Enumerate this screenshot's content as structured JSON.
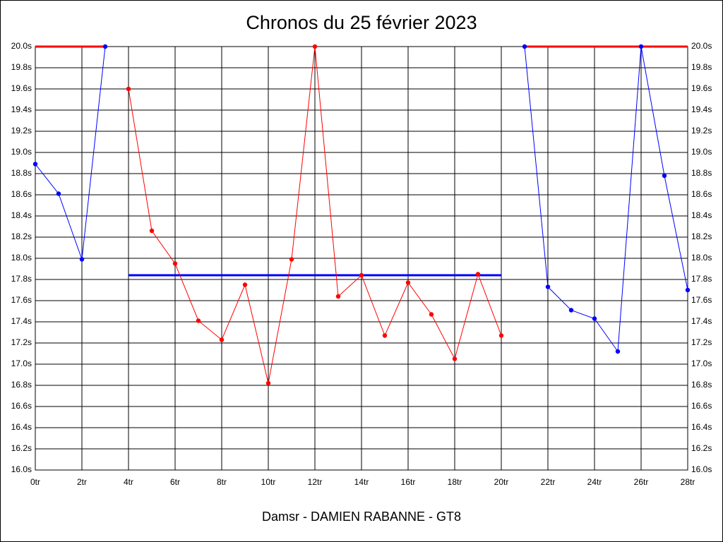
{
  "chart_data": {
    "type": "line",
    "title": "Chronos du 25 février 2023",
    "xlabel": "Damsr - DAMIEN RABANNE - GT8",
    "xlim": [
      0,
      28
    ],
    "xticks": [
      {
        "value": 0,
        "label": "0tr"
      },
      {
        "value": 2,
        "label": "2tr"
      },
      {
        "value": 4,
        "label": "4tr"
      },
      {
        "value": 6,
        "label": "6tr"
      },
      {
        "value": 8,
        "label": "8tr"
      },
      {
        "value": 10,
        "label": "10tr"
      },
      {
        "value": 12,
        "label": "12tr"
      },
      {
        "value": 14,
        "label": "14tr"
      },
      {
        "value": 16,
        "label": "16tr"
      },
      {
        "value": 18,
        "label": "18tr"
      },
      {
        "value": 20,
        "label": "20tr"
      },
      {
        "value": 22,
        "label": "22tr"
      },
      {
        "value": 24,
        "label": "24tr"
      },
      {
        "value": 26,
        "label": "26tr"
      },
      {
        "value": 28,
        "label": "28tr"
      }
    ],
    "ylim": [
      16,
      20
    ],
    "yticks": [
      {
        "value": 16,
        "label": "16.0s"
      },
      {
        "value": 16.2,
        "label": "16.2s"
      },
      {
        "value": 16.4,
        "label": "16.4s"
      },
      {
        "value": 16.6,
        "label": "16.6s"
      },
      {
        "value": 16.8,
        "label": "16.8s"
      },
      {
        "value": 17,
        "label": "17.0s"
      },
      {
        "value": 17.2,
        "label": "17.2s"
      },
      {
        "value": 17.4,
        "label": "17.4s"
      },
      {
        "value": 17.6,
        "label": "17.6s"
      },
      {
        "value": 17.8,
        "label": "17.8s"
      },
      {
        "value": 18,
        "label": "18.0s"
      },
      {
        "value": 18.2,
        "label": "18.2s"
      },
      {
        "value": 18.4,
        "label": "18.4s"
      },
      {
        "value": 18.6,
        "label": "18.6s"
      },
      {
        "value": 18.8,
        "label": "18.8s"
      },
      {
        "value": 19,
        "label": "19.0s"
      },
      {
        "value": 19.2,
        "label": "19.2s"
      },
      {
        "value": 19.4,
        "label": "19.4s"
      },
      {
        "value": 19.6,
        "label": "19.6s"
      },
      {
        "value": 19.8,
        "label": "19.8s"
      },
      {
        "value": 20,
        "label": "20.0s"
      }
    ],
    "grid": true,
    "series": [
      {
        "color": "#ff0000",
        "width": 3,
        "markers": false,
        "x": [
          0,
          3
        ],
        "values": [
          20,
          20
        ]
      },
      {
        "color": "#ff0000",
        "width": 3,
        "markers": false,
        "x": [
          21,
          28
        ],
        "values": [
          20,
          20
        ]
      },
      {
        "color": "#0000ff",
        "width": 3,
        "markers": false,
        "x": [
          4,
          20
        ],
        "values": [
          17.84,
          17.84
        ]
      },
      {
        "color": "#0000ff",
        "width": 1,
        "markers": true,
        "x": [
          0,
          1,
          2,
          3
        ],
        "values": [
          18.89,
          18.61,
          17.99,
          20.0
        ]
      },
      {
        "color": "#ff0000",
        "width": 1,
        "markers": true,
        "x": [
          4,
          5,
          6,
          7,
          8,
          9,
          10,
          11,
          12,
          13,
          14,
          15,
          16,
          17,
          18,
          19,
          20
        ],
        "values": [
          19.6,
          18.26,
          17.95,
          17.41,
          17.23,
          17.75,
          16.82,
          17.99,
          20.0,
          17.64,
          17.84,
          17.27,
          17.77,
          17.47,
          17.05,
          17.85,
          17.27
        ]
      },
      {
        "color": "#0000ff",
        "width": 1,
        "markers": true,
        "x": [
          21,
          22,
          23,
          24,
          25,
          26,
          27,
          28
        ],
        "values": [
          20.0,
          17.73,
          17.51,
          17.43,
          17.12,
          20.0,
          18.78,
          17.7
        ]
      }
    ]
  }
}
